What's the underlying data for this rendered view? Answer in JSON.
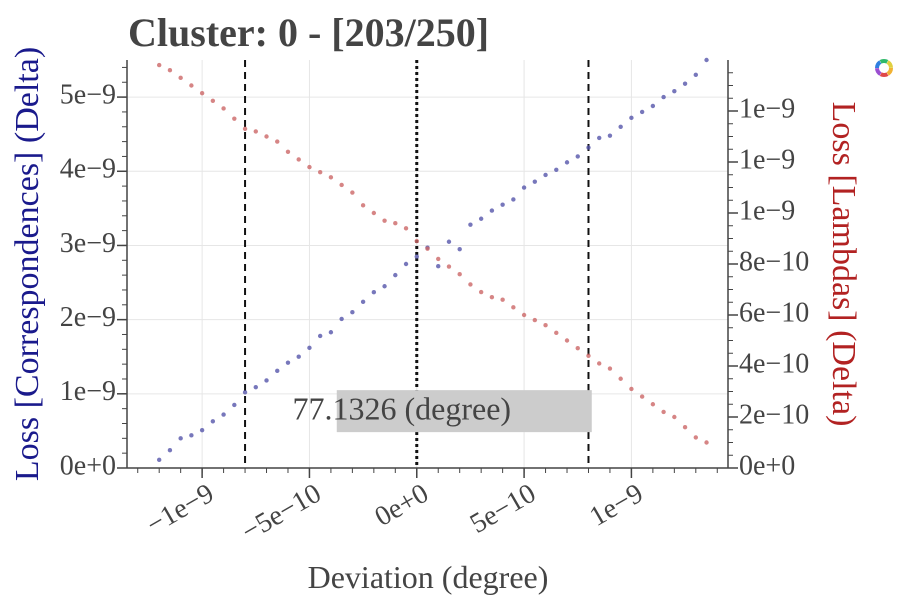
{
  "logo": {
    "icon": "colorful-ring-logo-icon"
  },
  "chart_data": {
    "type": "scatter",
    "title": "Cluster: 0 - [203/250]",
    "xlabel": "Deviation (degree)",
    "ylabel_left": "Loss [Correspondences] (Delta)",
    "ylabel_right": "Loss [Lambdas] (Delta)",
    "xlim": [
      -1.35e-09,
      1.45e-09
    ],
    "ylim_left": [
      0,
      5.5e-09
    ],
    "ylim_right": [
      0,
      1.6e-09
    ],
    "x_ticks": [
      -1e-09,
      -5e-10,
      0,
      5e-10,
      1e-09
    ],
    "x_tick_labels": [
      "−1e−9",
      "−5e−10",
      "0e+0",
      "5e−10",
      "1e−9"
    ],
    "y_left_ticks": [
      0,
      1e-09,
      2e-09,
      3e-09,
      4e-09,
      5e-09
    ],
    "y_left_tick_labels": [
      "0e+0",
      "1e−9",
      "2e−9",
      "3e−9",
      "4e−9",
      "5e−9"
    ],
    "y_right_ticks": [
      0,
      2e-10,
      4e-10,
      6e-10,
      8e-10,
      1e-09,
      1.2e-09,
      1.4e-09
    ],
    "y_right_tick_labels": [
      "0e+0",
      "2e−10",
      "4e−10",
      "6e−10",
      "8e−10",
      "1e−9",
      "1e−9",
      "1e−9"
    ],
    "vlines": [
      {
        "x": -8e-10,
        "style": "dashed"
      },
      {
        "x": 0,
        "style": "dotted"
      },
      {
        "x": 8e-10,
        "style": "dashed"
      }
    ],
    "annotation": {
      "text": "77.1326 (degree)",
      "x": 0,
      "y_left": 7.8e-10
    },
    "grid": true,
    "legend": "none",
    "colors": {
      "left_series": "#5555aa",
      "right_series": "#cc6666",
      "left_axis": "#1a1a8c",
      "right_axis": "#b22222"
    },
    "series": [
      {
        "axis": "left",
        "color": "#5555aa",
        "x": [
          -1.2e-09,
          -1.15e-09,
          -1.1e-09,
          -1.05e-09,
          -1e-09,
          -9.5e-10,
          -9e-10,
          -8.5e-10,
          -8e-10,
          -7.5e-10,
          -7e-10,
          -6.5e-10,
          -6e-10,
          -5.5e-10,
          -5e-10,
          -4.5e-10,
          -4e-10,
          -3.5e-10,
          -3e-10,
          -2.5e-10,
          -2e-10,
          -1.5e-10,
          -1e-10,
          -5e-11,
          0,
          5e-11,
          1e-10,
          1.5e-10,
          2e-10,
          2.5e-10,
          3e-10,
          3.5e-10,
          4e-10,
          4.5e-10,
          5e-10,
          5.5e-10,
          6e-10,
          6.5e-10,
          7e-10,
          7.5e-10,
          8e-10,
          8.5e-10,
          9e-10,
          9.5e-10,
          1e-09,
          1.05e-09,
          1.1e-09,
          1.15e-09,
          1.2e-09,
          1.25e-09,
          1.3e-09,
          1.35e-09
        ],
        "y": [
          1.1e-10,
          2.4e-10,
          4e-10,
          4.4e-10,
          5.1e-10,
          6.3e-10,
          7.2e-10,
          8.5e-10,
          1.02e-09,
          1.09e-09,
          1.18e-09,
          1.31e-09,
          1.42e-09,
          1.5e-09,
          1.62e-09,
          1.78e-09,
          1.83e-09,
          2.01e-09,
          2.1e-09,
          2.24e-09,
          2.37e-09,
          2.45e-09,
          2.6e-09,
          2.75e-09,
          2.85e-09,
          2.97e-09,
          2.72e-09,
          3.05e-09,
          2.95e-09,
          3.28e-09,
          3.36e-09,
          3.47e-09,
          3.55e-09,
          3.62e-09,
          3.78e-09,
          3.86e-09,
          3.95e-09,
          4.02e-09,
          4.12e-09,
          4.2e-09,
          4.32e-09,
          4.45e-09,
          4.48e-09,
          4.6e-09,
          4.72e-09,
          4.8e-09,
          4.88e-09,
          5e-09,
          5.08e-09,
          5.18e-09,
          5.3e-09,
          5.5e-09
        ]
      },
      {
        "axis": "right",
        "color": "#cc6666",
        "x": [
          -1.2e-09,
          -1.15e-09,
          -1.1e-09,
          -1.05e-09,
          -1e-09,
          -9.5e-10,
          -9e-10,
          -8.5e-10,
          -8e-10,
          -7.5e-10,
          -7e-10,
          -6.5e-10,
          -6e-10,
          -5.5e-10,
          -5e-10,
          -4.5e-10,
          -4e-10,
          -3.5e-10,
          -3e-10,
          -2.5e-10,
          -2e-10,
          -1.5e-10,
          -1e-10,
          -5e-11,
          0,
          5e-11,
          1e-10,
          1.5e-10,
          2e-10,
          2.5e-10,
          3e-10,
          3.5e-10,
          4e-10,
          4.5e-10,
          5e-10,
          5.5e-10,
          6e-10,
          6.5e-10,
          7e-10,
          7.5e-10,
          8e-10,
          8.5e-10,
          9e-10,
          9.5e-10,
          1e-09,
          1.05e-09,
          1.1e-09,
          1.15e-09,
          1.2e-09,
          1.25e-09,
          1.3e-09,
          1.35e-09
        ],
        "y": [
          1.58e-09,
          1.56e-09,
          1.53e-09,
          1.5e-09,
          1.47e-09,
          1.44e-09,
          1.41e-09,
          1.37e-09,
          1.33e-09,
          1.32e-09,
          1.3e-09,
          1.28e-09,
          1.24e-09,
          1.21e-09,
          1.18e-09,
          1.16e-09,
          1.14e-09,
          1.11e-09,
          1.08e-09,
          1.03e-09,
          1e-09,
          9.7e-10,
          9.6e-10,
          9.4e-10,
          8.9e-10,
          8.6e-10,
          8.2e-10,
          7.9e-10,
          7.6e-10,
          7.2e-10,
          6.9e-10,
          6.7e-10,
          6.6e-10,
          6.3e-10,
          6e-10,
          5.8e-10,
          5.6e-10,
          5.3e-10,
          5e-10,
          4.7e-10,
          4.4e-10,
          4.1e-10,
          3.9e-10,
          3.5e-10,
          3.1e-10,
          2.8e-10,
          2.5e-10,
          2.2e-10,
          2e-10,
          1.6e-10,
          1.2e-10,
          1e-10
        ]
      }
    ]
  }
}
